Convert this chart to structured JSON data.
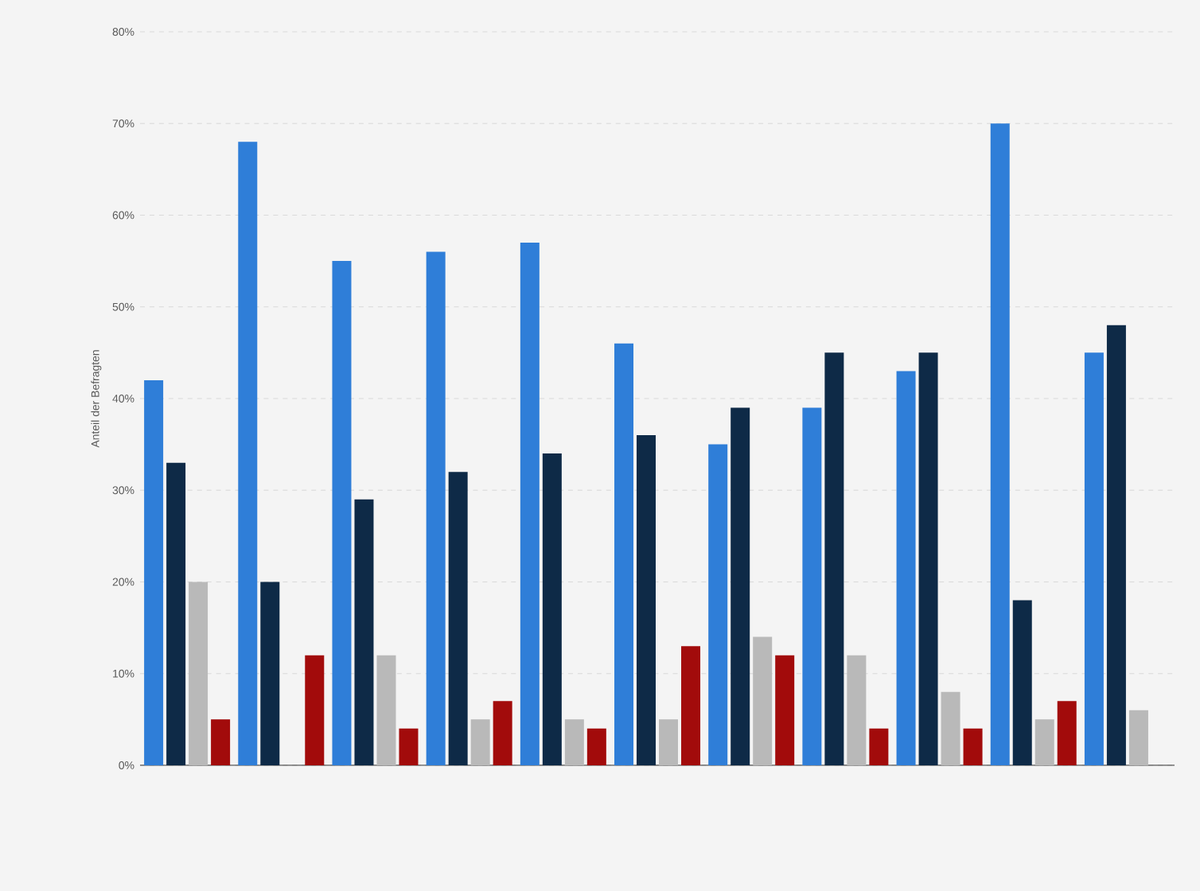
{
  "chart_data": {
    "type": "bar",
    "ylabel": "Anteil der Befragten",
    "categories": [
      null,
      null,
      null,
      null,
      null,
      null,
      null,
      null,
      null,
      null,
      null
    ],
    "series": [
      {
        "color": "#2f7ed8",
        "values": [
          42,
          68,
          55,
          56,
          57,
          46,
          35,
          39,
          43,
          70,
          45
        ]
      },
      {
        "color": "#0e2a47",
        "values": [
          33,
          20,
          29,
          32,
          34,
          36,
          39,
          45,
          45,
          18,
          48
        ]
      },
      {
        "color": "#b9b9b9",
        "values": [
          20,
          null,
          12,
          5,
          5,
          5,
          14,
          12,
          8,
          5,
          6
        ]
      },
      {
        "color": "#a20b0b",
        "values": [
          5,
          12,
          4,
          7,
          4,
          13,
          12,
          4,
          4,
          7,
          null
        ]
      }
    ],
    "ylim": [
      0,
      80
    ],
    "yticks": [
      {
        "value": 0,
        "label": "0%"
      },
      {
        "value": 10,
        "label": "10%"
      },
      {
        "value": 20,
        "label": "20%"
      },
      {
        "value": 30,
        "label": "30%"
      },
      {
        "value": 40,
        "label": "40%"
      },
      {
        "value": 50,
        "label": "50%"
      },
      {
        "value": 60,
        "label": "60%"
      },
      {
        "value": 70,
        "label": "70%"
      },
      {
        "value": 80,
        "label": "80%"
      }
    ],
    "grid": "y"
  }
}
